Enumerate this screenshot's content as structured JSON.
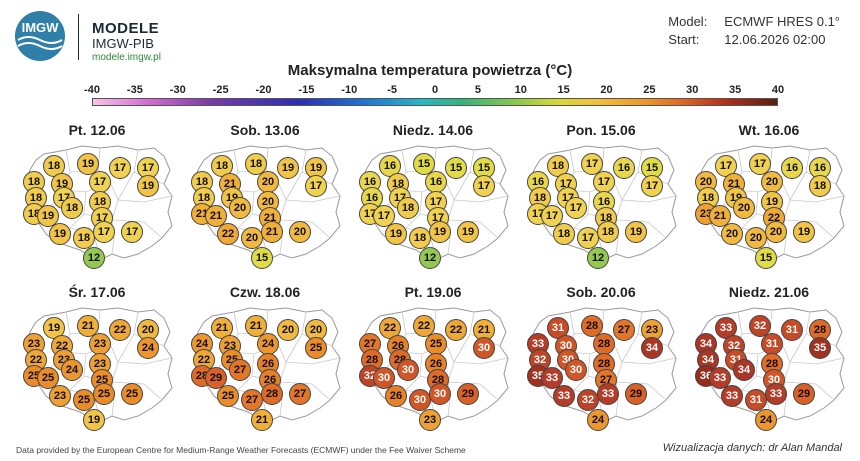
{
  "brand": {
    "logo_text": "IMGW",
    "line1": "MODELE",
    "line2": "IMGW-PIB",
    "line3": "modele.imgw.pl"
  },
  "model_info": {
    "model_label": "Model:",
    "model_value": "ECMWF HRES 0.1°",
    "start_label": "Start:",
    "start_value": "12.06.2026 02:00"
  },
  "title": "Maksymalna temperatura powietrza (°C)",
  "colorbar": {
    "ticks": [
      "-40",
      "-35",
      "-30",
      "-25",
      "-20",
      "-15",
      "-10",
      "-5",
      "0",
      "5",
      "10",
      "15",
      "20",
      "25",
      "30",
      "35",
      "40"
    ]
  },
  "panels": [
    {
      "title": "Pt. 12.06",
      "values": [
        18,
        19,
        17,
        17,
        18,
        19,
        17,
        19,
        18,
        18,
        17,
        18,
        19,
        18,
        17,
        19,
        18,
        17,
        17,
        12
      ]
    },
    {
      "title": "Sob. 13.06",
      "values": [
        18,
        18,
        19,
        19,
        18,
        21,
        20,
        17,
        18,
        21,
        19,
        20,
        21,
        20,
        21,
        22,
        20,
        21,
        20,
        15
      ]
    },
    {
      "title": "Niedz. 14.06",
      "values": [
        16,
        15,
        15,
        15,
        16,
        18,
        16,
        17,
        16,
        17,
        17,
        17,
        17,
        18,
        17,
        19,
        18,
        19,
        19,
        12
      ]
    },
    {
      "title": "Pon. 15.06",
      "values": [
        18,
        17,
        16,
        15,
        16,
        17,
        17,
        17,
        18,
        17,
        17,
        16,
        17,
        17,
        18,
        18,
        17,
        18,
        19,
        12
      ]
    },
    {
      "title": "Wt. 16.06",
      "values": [
        17,
        17,
        16,
        16,
        20,
        21,
        20,
        18,
        18,
        23,
        19,
        19,
        21,
        20,
        22,
        20,
        20,
        20,
        19,
        15
      ]
    },
    {
      "title": "Śr. 17.06",
      "values": [
        19,
        21,
        22,
        20,
        23,
        22,
        23,
        24,
        22,
        25,
        23,
        23,
        25,
        24,
        25,
        23,
        25,
        25,
        25,
        19
      ]
    },
    {
      "title": "Czw. 18.06",
      "values": [
        21,
        21,
        20,
        20,
        24,
        23,
        24,
        25,
        22,
        28,
        25,
        26,
        29,
        27,
        26,
        25,
        27,
        28,
        27,
        21
      ]
    },
    {
      "title": "Pt. 19.06",
      "values": [
        22,
        22,
        22,
        21,
        27,
        26,
        25,
        30,
        28,
        32,
        28,
        26,
        30,
        30,
        28,
        26,
        30,
        30,
        29,
        23
      ]
    },
    {
      "title": "Sob. 20.06",
      "values": [
        31,
        28,
        27,
        23,
        33,
        30,
        28,
        34,
        32,
        35,
        30,
        28,
        33,
        30,
        27,
        33,
        32,
        33,
        29,
        24
      ]
    },
    {
      "title": "Niedz. 21.06",
      "values": [
        33,
        32,
        31,
        28,
        34,
        32,
        31,
        35,
        34,
        36,
        31,
        28,
        33,
        34,
        30,
        33,
        31,
        33,
        29,
        24
      ]
    }
  ],
  "footer": {
    "left": "Data provided by the European Centre for Medium-Range Weather Forecasts (ECMWF) under the Fee Waiver Scheme",
    "right": "Wizualizacja danych: dr Alan Mandal"
  }
}
